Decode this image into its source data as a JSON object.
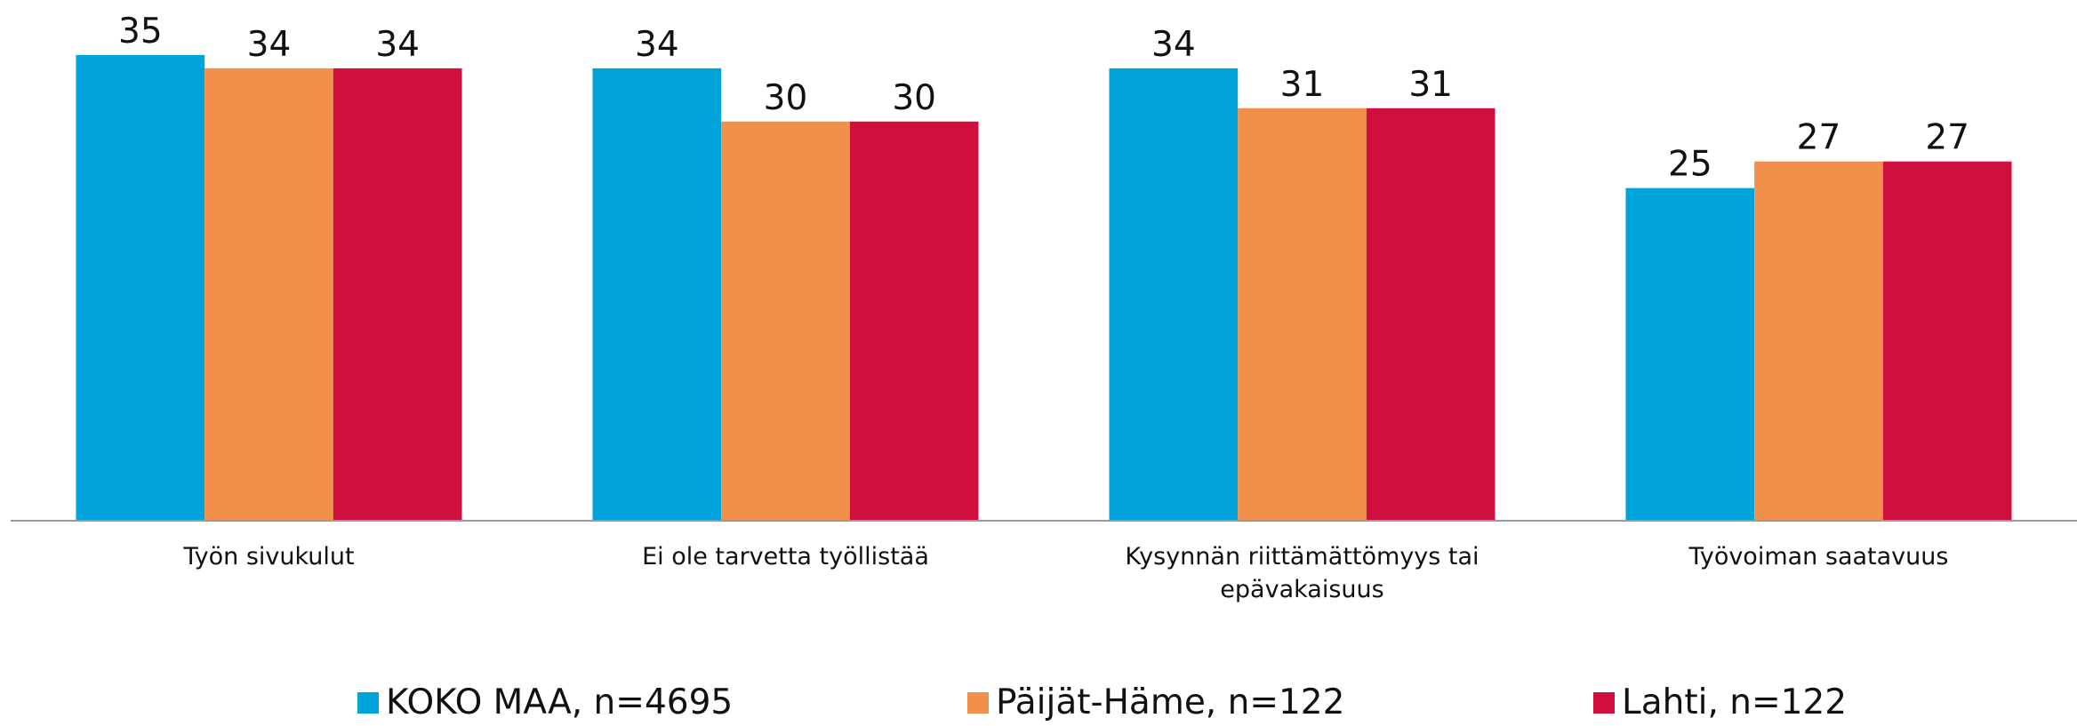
{
  "chart_data": {
    "type": "bar",
    "categories": [
      "Työn sivukulut",
      "Ei ole tarvetta työllistää",
      "Kysynnän riittämättömyys tai epävakaisuus",
      "Työvoiman saatavuus"
    ],
    "series": [
      {
        "name": "KOKO MAA, n=4695",
        "color": "#00a3da",
        "values": [
          35,
          34,
          34,
          25
        ]
      },
      {
        "name": "Päijät-Häme, n=122",
        "color": "#f0904a",
        "values": [
          34,
          30,
          31,
          27
        ]
      },
      {
        "name": "Lahti, n=122",
        "color": "#cf0f3d",
        "values": [
          34,
          30,
          31,
          27
        ]
      }
    ],
    "ylim": [
      0,
      39
    ],
    "legend": "bottom"
  }
}
